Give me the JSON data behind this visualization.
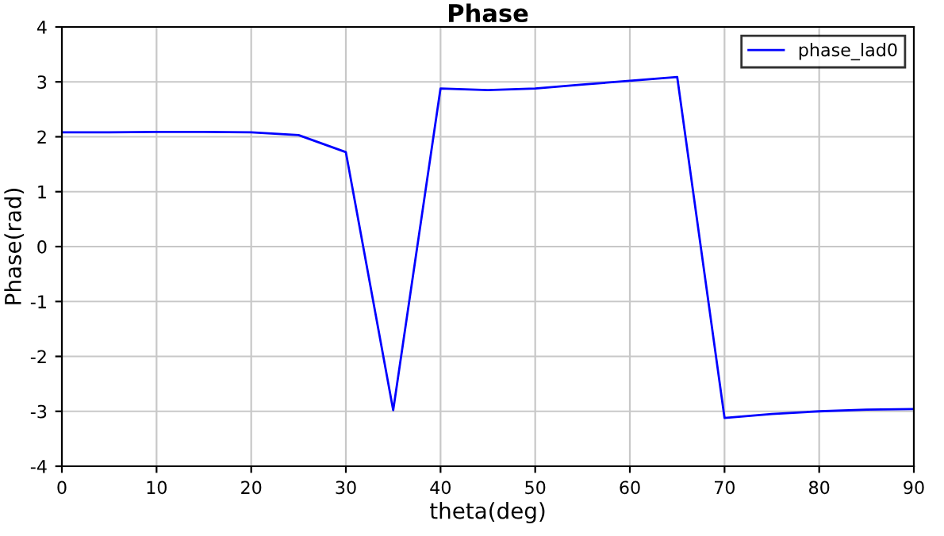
{
  "chart_data": {
    "type": "line",
    "title": "Phase",
    "xlabel": "theta(deg)",
    "ylabel": "Phase(rad)",
    "x": [
      0,
      5,
      10,
      15,
      20,
      25,
      30,
      35,
      40,
      45,
      50,
      55,
      60,
      65,
      70,
      75,
      80,
      85,
      90
    ],
    "series": [
      {
        "name": "phase_lad0",
        "color": "#0000ff",
        "values": [
          2.08,
          2.08,
          2.09,
          2.09,
          2.08,
          2.03,
          1.72,
          -2.98,
          2.88,
          2.85,
          2.88,
          2.95,
          3.02,
          3.09,
          -3.12,
          -3.05,
          -3.0,
          -2.97,
          -2.96
        ]
      }
    ],
    "xlim": [
      0,
      90
    ],
    "xticks": [
      0,
      10,
      20,
      30,
      40,
      50,
      60,
      70,
      80,
      90
    ],
    "ylim": [
      -4,
      4
    ],
    "yticks": [
      -4,
      -3,
      -2,
      -1,
      0,
      1,
      2,
      3,
      4
    ],
    "grid": true,
    "legend": "top right",
    "marker": "none",
    "line_style": "solid"
  }
}
